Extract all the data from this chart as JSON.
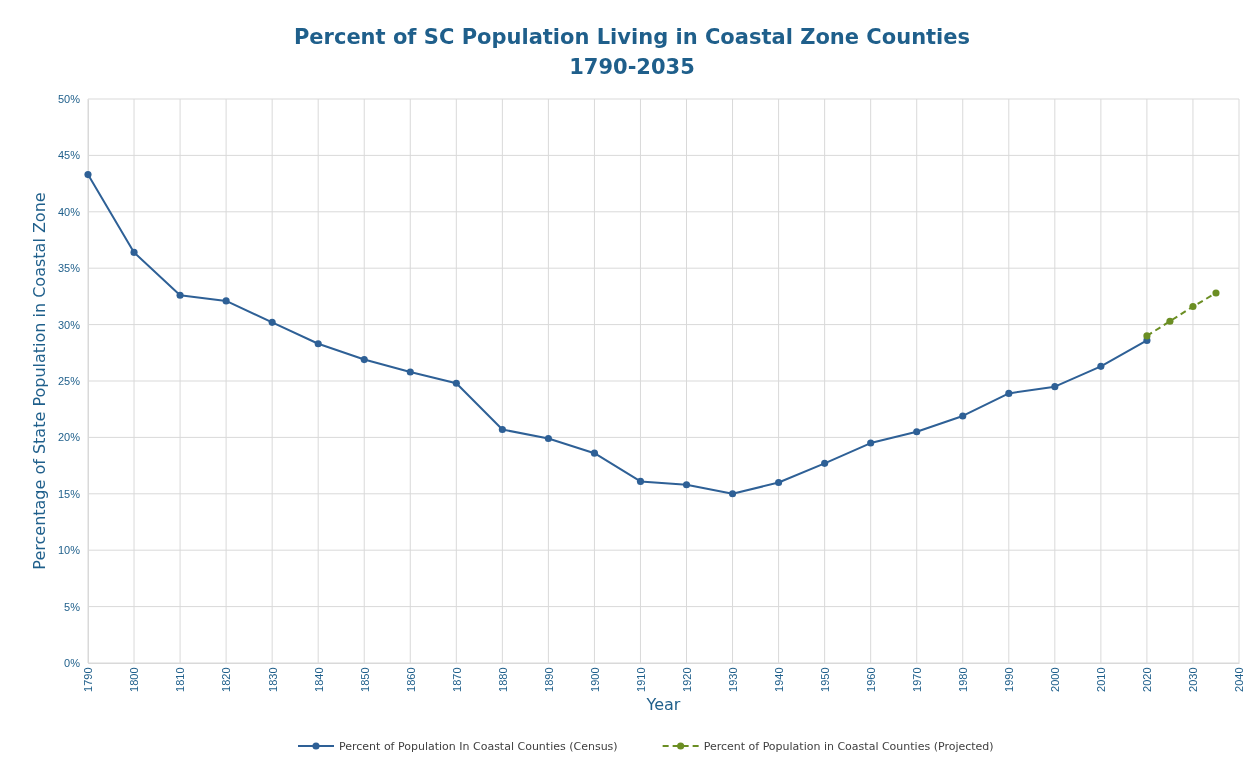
{
  "chart_data": {
    "type": "line",
    "title": "Percent of SC Population Living in Coastal Zone Counties\n1790-2035",
    "xlabel": "Year",
    "ylabel": "Percentage of State Population in Coastal Zone",
    "xlim": [
      1790,
      2040
    ],
    "xticks": [
      1790,
      1800,
      1810,
      1820,
      1830,
      1840,
      1850,
      1860,
      1870,
      1880,
      1890,
      1900,
      1910,
      1920,
      1930,
      1940,
      1950,
      1960,
      1970,
      1980,
      1990,
      2000,
      2010,
      2020,
      2030,
      2040
    ],
    "ylim": [
      0,
      50
    ],
    "yticks": [
      {
        "value": 0,
        "label": "0%"
      },
      {
        "value": 5,
        "label": "5%"
      },
      {
        "value": 10,
        "label": "10%"
      },
      {
        "value": 15,
        "label": "15%"
      },
      {
        "value": 20,
        "label": "20%"
      },
      {
        "value": 25,
        "label": "25%"
      },
      {
        "value": 30,
        "label": "30%"
      },
      {
        "value": 35,
        "label": "35%"
      },
      {
        "value": 40,
        "label": "40%"
      },
      {
        "value": 45,
        "label": "45%"
      },
      {
        "value": 50,
        "label": "50%"
      }
    ],
    "grid": true,
    "legend": "bottom",
    "marker": "circle",
    "series": [
      {
        "name": "Percent of Population In Coastal Counties (Census)",
        "color": "#2e6096",
        "line_style": "solid",
        "x": [
          1790,
          1800,
          1810,
          1820,
          1830,
          1840,
          1850,
          1860,
          1870,
          1880,
          1890,
          1900,
          1910,
          1920,
          1930,
          1940,
          1950,
          1960,
          1970,
          1980,
          1990,
          2000,
          2010,
          2020
        ],
        "values": [
          43.3,
          36.4,
          32.6,
          32.1,
          30.2,
          28.3,
          26.9,
          25.8,
          24.8,
          20.7,
          19.9,
          18.6,
          16.1,
          15.8,
          15.0,
          16.0,
          17.7,
          19.5,
          20.5,
          21.9,
          23.9,
          24.5,
          26.3,
          28.6
        ]
      },
      {
        "name": "Percent of Population in Coastal Counties (Projected)",
        "color": "#6b8e23",
        "line_style": "dashed",
        "x": [
          2020,
          2025,
          2030,
          2035
        ],
        "values": [
          29.0,
          30.3,
          31.6,
          32.8
        ]
      }
    ]
  }
}
